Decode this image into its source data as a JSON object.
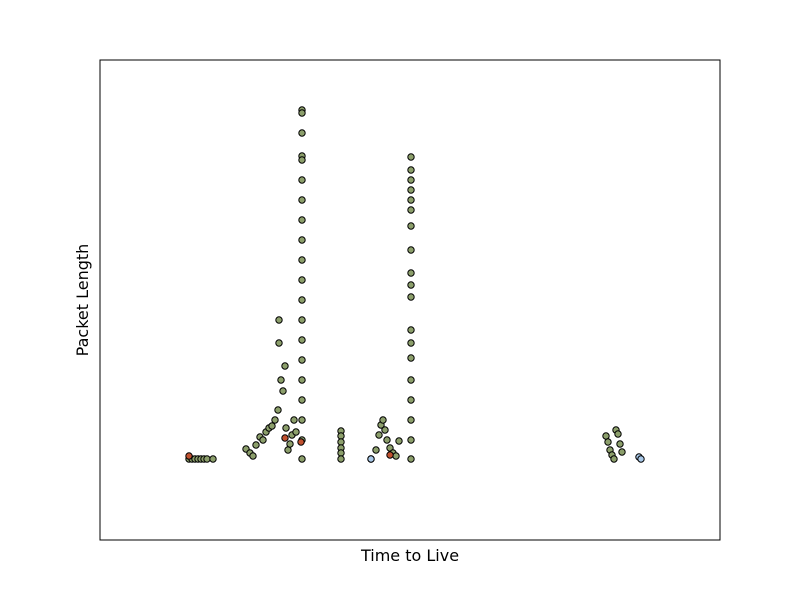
{
  "chart_data": {
    "type": "scatter",
    "title": "",
    "xlabel": "Time to Live",
    "ylabel": "Packet Length",
    "xlim": [
      0,
      620
    ],
    "ylim": [
      0,
      480
    ],
    "grid": false,
    "ticks_visible": false,
    "colors": {
      "default": "#8c9f6b",
      "alt": "#9aa86a",
      "highlight": "#c0512f",
      "light": "#a8c8e8",
      "edge": "#000000"
    },
    "series": [
      {
        "color": "#8c9f6b",
        "points": [
          [
            89,
            81
          ],
          [
            92,
            81
          ],
          [
            95,
            81
          ],
          [
            98,
            81
          ],
          [
            101,
            81
          ],
          [
            104,
            81
          ],
          [
            107,
            81
          ],
          [
            113,
            81
          ],
          [
            146,
            91
          ],
          [
            150,
            87
          ],
          [
            153,
            84
          ],
          [
            156,
            95
          ],
          [
            160,
            103
          ],
          [
            163,
            100
          ],
          [
            166,
            108
          ],
          [
            169,
            112
          ],
          [
            172,
            114
          ],
          [
            175,
            120
          ],
          [
            178,
            130
          ],
          [
            179,
            220
          ],
          [
            179,
            197
          ],
          [
            181,
            160
          ],
          [
            183,
            149
          ],
          [
            185,
            174
          ],
          [
            186,
            112
          ],
          [
            188,
            90
          ],
          [
            190,
            96
          ],
          [
            192,
            105
          ],
          [
            194,
            120
          ],
          [
            196,
            108
          ],
          [
            202,
            430
          ],
          [
            202,
            427
          ],
          [
            202,
            407
          ],
          [
            202,
            384
          ],
          [
            202,
            380
          ],
          [
            202,
            360
          ],
          [
            202,
            340
          ],
          [
            202,
            320
          ],
          [
            202,
            300
          ],
          [
            202,
            280
          ],
          [
            202,
            260
          ],
          [
            202,
            240
          ],
          [
            202,
            220
          ],
          [
            202,
            200
          ],
          [
            202,
            180
          ],
          [
            202,
            160
          ],
          [
            202,
            140
          ],
          [
            202,
            120
          ],
          [
            202,
            100
          ],
          [
            202,
            81
          ],
          [
            241,
            109
          ],
          [
            241,
            104
          ],
          [
            241,
            98
          ],
          [
            241,
            92
          ],
          [
            241,
            87
          ],
          [
            241,
            81
          ],
          [
            271,
            81
          ],
          [
            276,
            90
          ],
          [
            279,
            105
          ],
          [
            281,
            115
          ],
          [
            283,
            120
          ],
          [
            285,
            110
          ],
          [
            287,
            100
          ],
          [
            290,
            92
          ],
          [
            293,
            87
          ],
          [
            296,
            84
          ],
          [
            299,
            99
          ],
          [
            311,
            383
          ],
          [
            311,
            370
          ],
          [
            311,
            360
          ],
          [
            311,
            350
          ],
          [
            311,
            340
          ],
          [
            311,
            330
          ],
          [
            311,
            314
          ],
          [
            311,
            290
          ],
          [
            311,
            267
          ],
          [
            311,
            255
          ],
          [
            311,
            243
          ],
          [
            311,
            210
          ],
          [
            311,
            197
          ],
          [
            311,
            182
          ],
          [
            311,
            160
          ],
          [
            311,
            140
          ],
          [
            311,
            120
          ],
          [
            311,
            100
          ],
          [
            311,
            81
          ],
          [
            506,
            104
          ],
          [
            508,
            98
          ],
          [
            510,
            90
          ],
          [
            512,
            85
          ],
          [
            514,
            81
          ],
          [
            516,
            110
          ],
          [
            518,
            106
          ],
          [
            520,
            96
          ],
          [
            522,
            88
          ]
        ]
      },
      {
        "color": "#c0512f",
        "points": [
          [
            89,
            84
          ],
          [
            185,
            102
          ],
          [
            201,
            98
          ],
          [
            290,
            85
          ]
        ]
      },
      {
        "color": "#a8c8e8",
        "points": [
          [
            271,
            81
          ],
          [
            539,
            83
          ],
          [
            541,
            81
          ]
        ]
      }
    ]
  }
}
